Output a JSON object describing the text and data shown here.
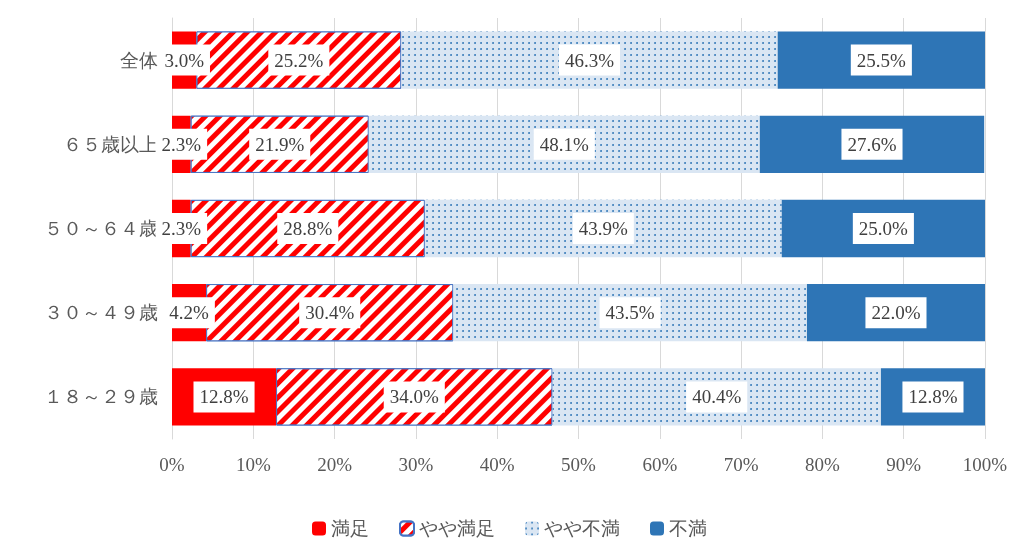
{
  "chart_data": {
    "type": "bar",
    "orientation": "horizontal",
    "stacked": true,
    "categories": [
      "全体",
      "６５歳以上",
      "５０～６４歳",
      "３０～４９歳",
      "１８～２９歳"
    ],
    "series": [
      {
        "name": "満足",
        "color": "#ff0000",
        "values": [
          3.0,
          2.3,
          2.3,
          4.2,
          12.8
        ],
        "value_labels": [
          "3.0%",
          "2.3%",
          "2.3%",
          "4.2%",
          "12.8%"
        ]
      },
      {
        "name": "やや満足",
        "color": "#ff0000",
        "values": [
          25.2,
          21.9,
          28.8,
          30.4,
          34.0
        ],
        "value_labels": [
          "25.2%",
          "21.9%",
          "28.8%",
          "30.4%",
          "34.0%"
        ]
      },
      {
        "name": "やや不満",
        "color": "#dae6f3",
        "values": [
          46.3,
          48.1,
          43.9,
          43.5,
          40.4
        ],
        "value_labels": [
          "46.3%",
          "48.1%",
          "43.9%",
          "43.5%",
          "40.4%"
        ]
      },
      {
        "name": "不満",
        "color": "#2e75b6",
        "values": [
          25.5,
          27.6,
          25.0,
          22.0,
          12.8
        ],
        "value_labels": [
          "25.5%",
          "27.6%",
          "25.0%",
          "22.0%",
          "12.8%"
        ]
      }
    ],
    "xlim": [
      0,
      100
    ],
    "xticks": [
      {
        "value": 0,
        "label": "0%"
      },
      {
        "value": 10,
        "label": "10%"
      },
      {
        "value": 20,
        "label": "20%"
      },
      {
        "value": 30,
        "label": "30%"
      },
      {
        "value": 40,
        "label": "40%"
      },
      {
        "value": 50,
        "label": "50%"
      },
      {
        "value": 60,
        "label": "60%"
      },
      {
        "value": 70,
        "label": "70%"
      },
      {
        "value": 80,
        "label": "80%"
      },
      {
        "value": 90,
        "label": "90%"
      },
      {
        "value": 100,
        "label": "100%"
      }
    ],
    "grid": "x",
    "legend": "bottom"
  }
}
